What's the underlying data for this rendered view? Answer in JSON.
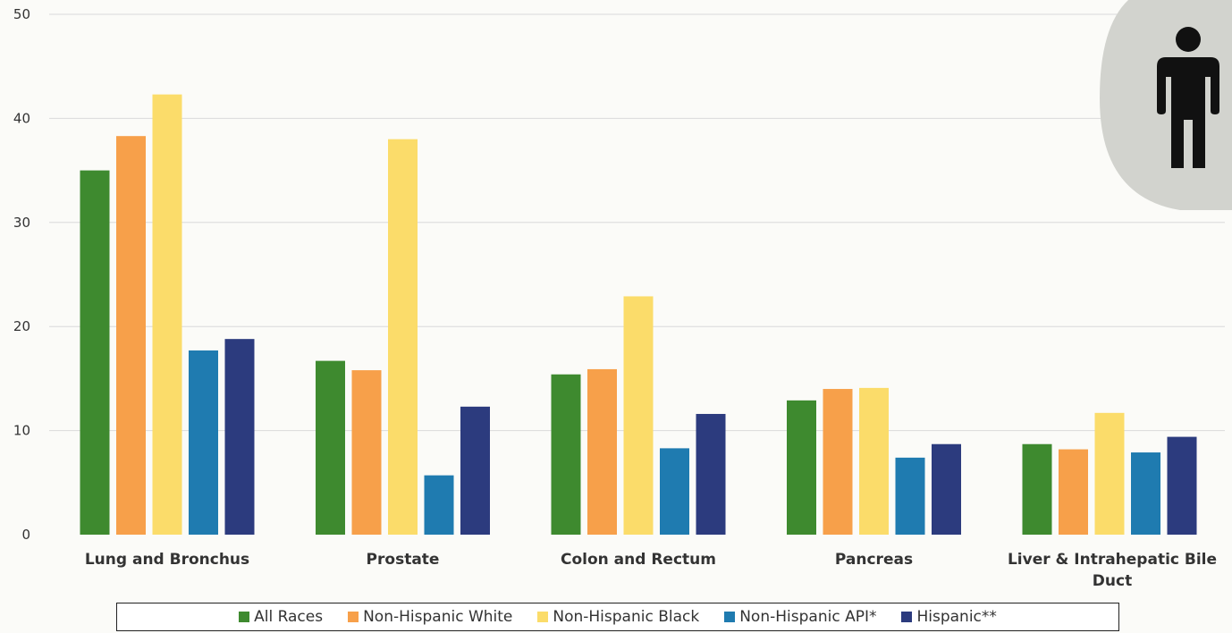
{
  "chart_data": {
    "type": "bar",
    "categories": [
      "Lung and Bronchus",
      "Prostate",
      "Colon and Rectum",
      "Pancreas",
      "Liver & Intrahepatic Bile Duct"
    ],
    "category_lines": [
      [
        "Lung and Bronchus"
      ],
      [
        "Prostate"
      ],
      [
        "Colon and Rectum"
      ],
      [
        "Pancreas"
      ],
      [
        "Liver & Intrahepatic Bile",
        "Duct"
      ]
    ],
    "series": [
      {
        "name": "All Races",
        "color": "#3e8a2f",
        "values": [
          35.0,
          16.7,
          15.4,
          12.9,
          8.7
        ]
      },
      {
        "name": "Non-Hispanic White",
        "color": "#f7a04a",
        "values": [
          38.3,
          15.8,
          15.9,
          14.0,
          8.2
        ]
      },
      {
        "name": "Non-Hispanic Black",
        "color": "#fbdc6a",
        "values": [
          42.3,
          38.0,
          22.9,
          14.1,
          11.7
        ]
      },
      {
        "name": "Non-Hispanic API*",
        "color": "#1f7bb0",
        "values": [
          17.7,
          5.7,
          8.3,
          7.4,
          7.9
        ]
      },
      {
        "name": "Hispanic**",
        "color": "#2c3b7e",
        "values": [
          18.8,
          12.3,
          11.6,
          8.7,
          9.4
        ]
      }
    ],
    "yticks": [
      0,
      10,
      20,
      30,
      40,
      50
    ],
    "ylim": [
      0,
      50
    ],
    "title": "",
    "xlabel": "",
    "ylabel": "",
    "grid": true,
    "legend_position": "bottom"
  },
  "icon": {
    "name": "male-person-icon",
    "background": "#d2d3ce",
    "color": "#111111"
  }
}
